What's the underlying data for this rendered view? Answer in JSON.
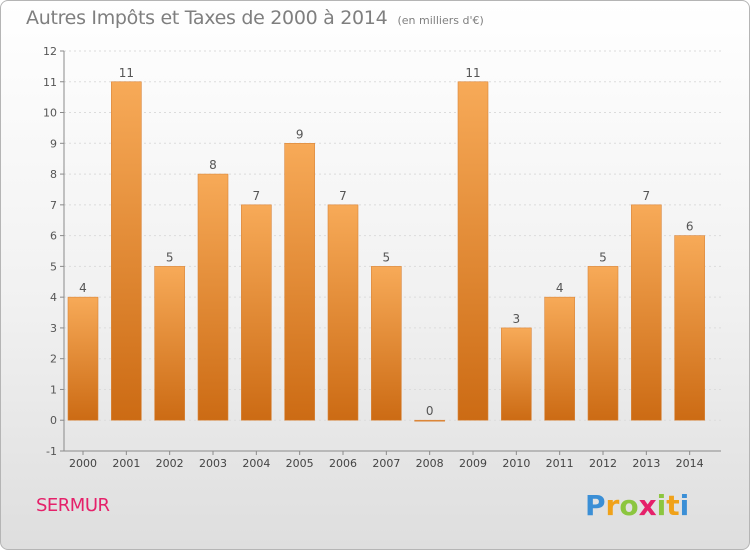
{
  "title": "Autres Impôts et Taxes de 2000 à 2014",
  "subtitle": "(en milliers d'€)",
  "commune": "SERMUR",
  "logo": {
    "letters": [
      "P",
      "r",
      "o",
      "x",
      "i",
      "t",
      "i"
    ]
  },
  "colors": {
    "bar_light": "#f7aa58",
    "bar_dark": "#cc6b14",
    "text": "#7f7f7f",
    "commune": "#e5216a"
  },
  "chart_data": {
    "type": "bar",
    "categories": [
      "2000",
      "2001",
      "2002",
      "2003",
      "2004",
      "2005",
      "2006",
      "2007",
      "2008",
      "2009",
      "2010",
      "2011",
      "2012",
      "2013",
      "2014"
    ],
    "values": [
      4,
      11,
      5,
      8,
      7,
      9,
      7,
      5,
      0,
      11,
      3,
      4,
      5,
      7,
      6
    ],
    "data_labels": [
      "4",
      "11",
      "5",
      "8",
      "7",
      "9",
      "7",
      "5",
      "0",
      "11",
      "3",
      "4",
      "5",
      "7",
      "6"
    ],
    "ylim": [
      -1,
      12
    ],
    "yticks": [
      -1,
      0,
      1,
      2,
      3,
      4,
      5,
      6,
      7,
      8,
      9,
      10,
      11,
      12
    ],
    "ytick_labels": [
      "-1",
      "0",
      "1",
      "2",
      "3",
      "4",
      "5",
      "6",
      "7",
      "8",
      "9",
      "10",
      "11",
      "12"
    ],
    "grid": true
  }
}
